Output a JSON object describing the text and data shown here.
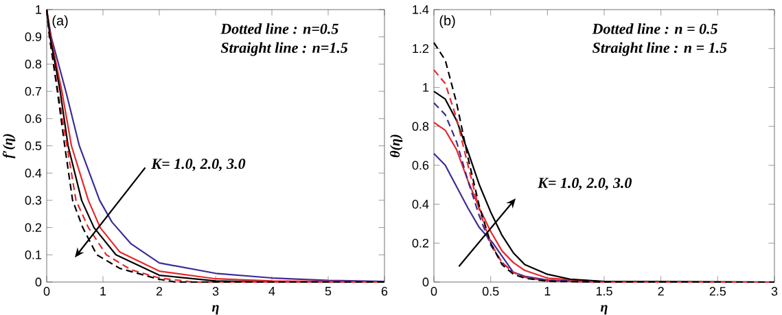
{
  "chart_data": [
    {
      "type": "line",
      "xlabel": "η",
      "ylabel": "f′(η)",
      "xlim": [
        0,
        6
      ],
      "ylim": [
        0,
        1
      ],
      "xticks": [
        0,
        1,
        2,
        3,
        4,
        5,
        6
      ],
      "yticks": [
        0,
        0.1,
        0.2,
        0.3,
        0.4,
        0.5,
        0.6,
        0.7,
        0.8,
        0.9,
        1
      ],
      "annotations": [
        "(a)",
        "Dotted line     : n=0.5",
        "Straight line   : n=1.5",
        "K= 1.0, 2.0, 3.0"
      ],
      "series": [
        {
          "color": "#3b2c96",
          "line_style": "solid",
          "x": [
            0,
            0.08,
            0.34,
            0.58,
            0.94,
            1.16,
            1.5,
            2,
            3,
            4,
            5,
            6
          ],
          "values": [
            1,
            0.9,
            0.7,
            0.5,
            0.3,
            0.22,
            0.14,
            0.07,
            0.032,
            0.015,
            0.006,
            0.002
          ]
        },
        {
          "color": "#e8262a",
          "line_style": "solid",
          "x": [
            0,
            0.07,
            0.27,
            0.44,
            0.74,
            0.95,
            1.3,
            2,
            3,
            4,
            6
          ],
          "values": [
            1,
            0.9,
            0.7,
            0.5,
            0.3,
            0.2,
            0.11,
            0.04,
            0.012,
            0.004,
            0
          ]
        },
        {
          "color": "#000000",
          "line_style": "solid",
          "x": [
            0,
            0.06,
            0.24,
            0.38,
            0.62,
            0.84,
            1.23,
            2,
            3,
            4,
            6
          ],
          "values": [
            1,
            0.9,
            0.7,
            0.5,
            0.3,
            0.2,
            0.1,
            0.025,
            0.004,
            0,
            0
          ]
        },
        {
          "color": "#e8262a",
          "line_style": "dashed",
          "x": [
            0,
            0.05,
            0.2,
            0.36,
            0.52,
            0.74,
            1.06,
            1.5,
            2,
            2.6,
            6
          ],
          "values": [
            1,
            0.9,
            0.7,
            0.5,
            0.3,
            0.2,
            0.1,
            0.045,
            0.015,
            0,
            0
          ]
        },
        {
          "color": "#000000",
          "line_style": "dashed",
          "x": [
            0,
            0.05,
            0.19,
            0.32,
            0.46,
            0.64,
            0.89,
            1.3,
            2,
            2.3,
            6
          ],
          "values": [
            1,
            0.9,
            0.7,
            0.5,
            0.3,
            0.2,
            0.1,
            0.05,
            0.01,
            0,
            0
          ]
        }
      ]
    },
    {
      "type": "line",
      "xlabel": "η",
      "ylabel": "θ(η)",
      "xlim": [
        0,
        3
      ],
      "ylim": [
        0,
        1.4
      ],
      "xticks": [
        0,
        0.5,
        1,
        1.5,
        2,
        2.5,
        3
      ],
      "yticks": [
        0,
        0.2,
        0.4,
        0.6,
        0.8,
        1,
        1.2,
        1.4
      ],
      "annotations": [
        "(b)",
        "Dotted line     : n = 0.5",
        "Straight line   : n = 1.5",
        "K= 1.0, 2.0, 3.0"
      ],
      "series": [
        {
          "color": "#3b2c96",
          "line_style": "solid",
          "x": [
            0,
            0.1,
            0.2,
            0.3,
            0.4,
            0.52,
            0.7,
            0.8,
            1,
            1.5,
            3
          ],
          "values": [
            0.66,
            0.6,
            0.49,
            0.38,
            0.28,
            0.2,
            0.05,
            0.03,
            0.01,
            0,
            0
          ]
        },
        {
          "color": "#e8262a",
          "line_style": "solid",
          "x": [
            0,
            0.1,
            0.2,
            0.3,
            0.4,
            0.5,
            0.6,
            0.7,
            0.8,
            1,
            1.5,
            3
          ],
          "values": [
            0.82,
            0.78,
            0.68,
            0.52,
            0.38,
            0.26,
            0.16,
            0.1,
            0.06,
            0.02,
            0.002,
            0
          ]
        },
        {
          "color": "#000000",
          "line_style": "solid",
          "x": [
            0,
            0.1,
            0.2,
            0.3,
            0.4,
            0.5,
            0.6,
            0.7,
            0.8,
            1,
            1.2,
            1.5,
            3
          ],
          "values": [
            0.98,
            0.94,
            0.83,
            0.67,
            0.5,
            0.36,
            0.24,
            0.15,
            0.09,
            0.04,
            0.015,
            0.003,
            0
          ]
        },
        {
          "color": "#3b2c96",
          "line_style": "dashed",
          "x": [
            0,
            0.1,
            0.2,
            0.3,
            0.4,
            0.5,
            0.6,
            0.7,
            0.8,
            1,
            1.5,
            3
          ],
          "values": [
            0.92,
            0.86,
            0.72,
            0.52,
            0.34,
            0.19,
            0.1,
            0.05,
            0.025,
            0.006,
            0,
            0
          ]
        },
        {
          "color": "#e8262a",
          "line_style": "dashed",
          "x": [
            0,
            0.1,
            0.2,
            0.3,
            0.4,
            0.5,
            0.6,
            0.7,
            0.8,
            1,
            1.5,
            3
          ],
          "values": [
            1.09,
            1.02,
            0.84,
            0.6,
            0.37,
            0.2,
            0.1,
            0.05,
            0.025,
            0.005,
            0,
            0
          ]
        },
        {
          "color": "#000000",
          "line_style": "dashed",
          "x": [
            0,
            0.1,
            0.2,
            0.3,
            0.4,
            0.5,
            0.6,
            0.7,
            0.8,
            1,
            1.5,
            3
          ],
          "values": [
            1.23,
            1.14,
            0.92,
            0.64,
            0.39,
            0.2,
            0.09,
            0.04,
            0.02,
            0.004,
            0,
            0
          ]
        }
      ]
    }
  ]
}
